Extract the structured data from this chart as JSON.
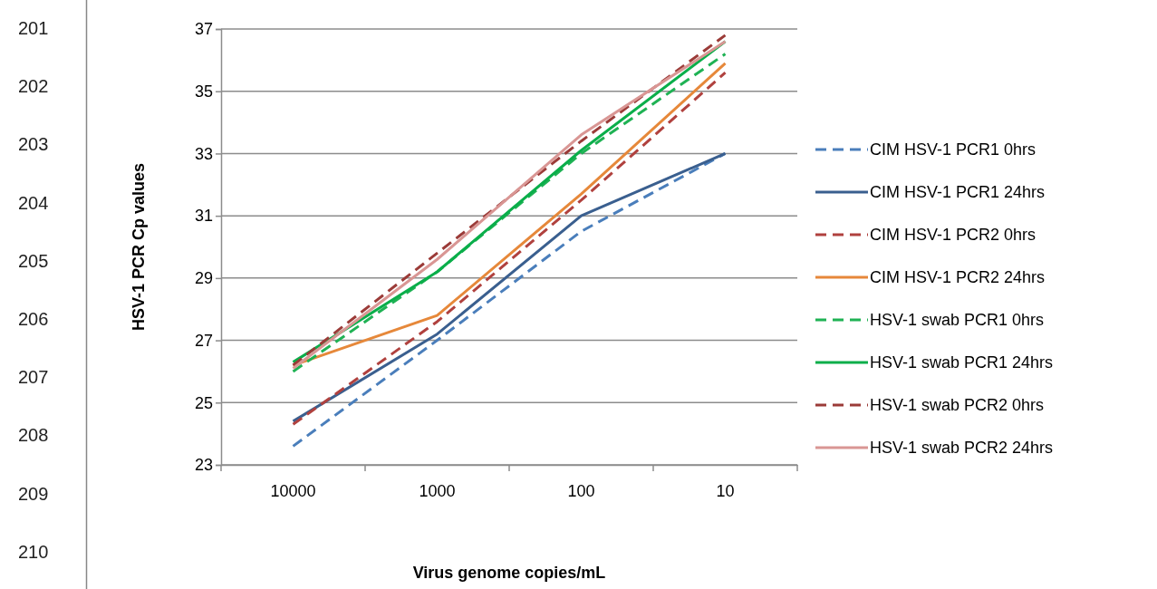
{
  "chart_data": {
    "type": "line",
    "xlabel": "Virus genome copies/mL",
    "ylabel": "HSV-1 PCR Cp values",
    "categories": [
      "10000",
      "1000",
      "100",
      "10"
    ],
    "ylim": [
      23,
      37
    ],
    "yticks": [
      23,
      25,
      27,
      29,
      31,
      33,
      35,
      37
    ],
    "grid": "y",
    "legend": "right",
    "marker": "none",
    "series": [
      {
        "name": "CIM HSV-1 PCR1 0hrs",
        "color": "#4a7ebb",
        "line_style": "dashed",
        "values": [
          23.6,
          27.0,
          30.5,
          33.0
        ]
      },
      {
        "name": "CIM HSV-1 PCR1 24hrs",
        "color": "#3a5f8f",
        "line_style": "solid",
        "values": [
          24.4,
          27.2,
          31.0,
          33.0
        ]
      },
      {
        "name": "CIM HSV-1 PCR2 0hrs",
        "color": "#b0413e",
        "line_style": "dashed",
        "values": [
          24.3,
          27.6,
          31.5,
          35.6
        ]
      },
      {
        "name": "CIM HSV-1 PCR2 24hrs",
        "color": "#e6883a",
        "line_style": "solid",
        "values": [
          26.2,
          27.8,
          31.7,
          35.9
        ]
      },
      {
        "name": "HSV-1 swab PCR1 0hrs",
        "color": "#1fb254",
        "line_style": "dashed",
        "values": [
          26.0,
          29.2,
          33.0,
          36.2
        ]
      },
      {
        "name": "HSV-1 swab PCR1 24hrs",
        "color": "#0aae4a",
        "line_style": "solid",
        "values": [
          26.3,
          29.2,
          33.1,
          36.6
        ]
      },
      {
        "name": "HSV-1 swab PCR2 0hrs",
        "color": "#9b3b38",
        "line_style": "dashed",
        "values": [
          26.2,
          29.8,
          33.4,
          36.8
        ]
      },
      {
        "name": "HSV-1 swab PCR2 24hrs",
        "color": "#d99694",
        "line_style": "solid",
        "values": [
          26.1,
          29.6,
          33.6,
          36.6
        ]
      }
    ],
    "annotations": [
      "201",
      "202",
      "203",
      "204",
      "205",
      "206",
      "207",
      "208",
      "209",
      "210"
    ]
  }
}
